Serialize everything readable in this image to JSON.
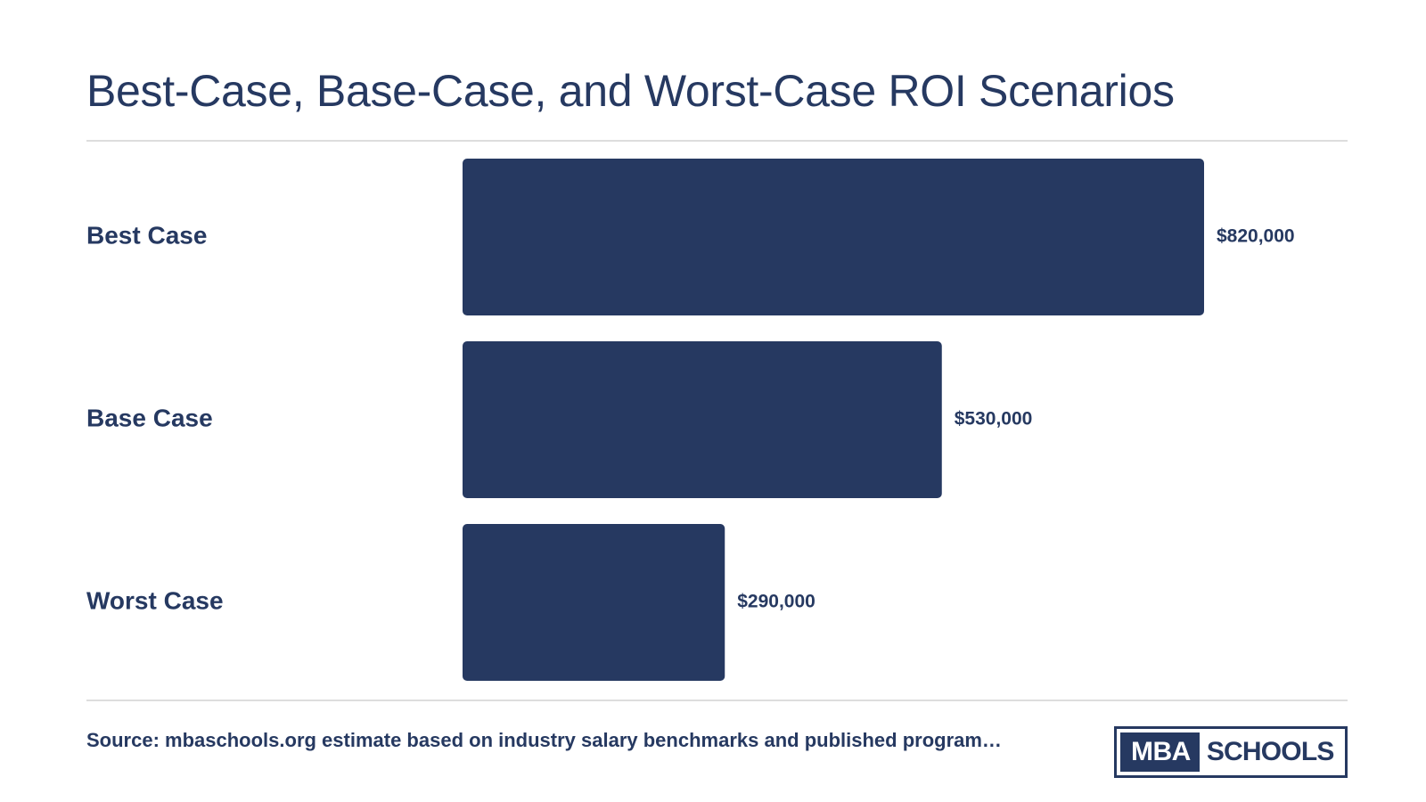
{
  "chart_data": {
    "type": "bar",
    "orientation": "horizontal",
    "title": "Best-Case, Base-Case, and Worst-Case ROI Scenarios",
    "categories": [
      "Best Case",
      "Base Case",
      "Worst Case"
    ],
    "values": [
      820000,
      530000,
      290000
    ],
    "value_labels": [
      "$820,000",
      "$530,000",
      "$290,000"
    ],
    "xlim": [
      0,
      820000
    ],
    "grid": false,
    "bar_color": "#263961"
  },
  "footer": {
    "source": "Source: mbaschools.org estimate based on industry salary benchmarks and published program…"
  },
  "logo": {
    "left_text": "MBA",
    "right_text": "SCHOOLS"
  },
  "colors": {
    "primary": "#263961",
    "rule": "#dddddd",
    "background": "#ffffff"
  }
}
